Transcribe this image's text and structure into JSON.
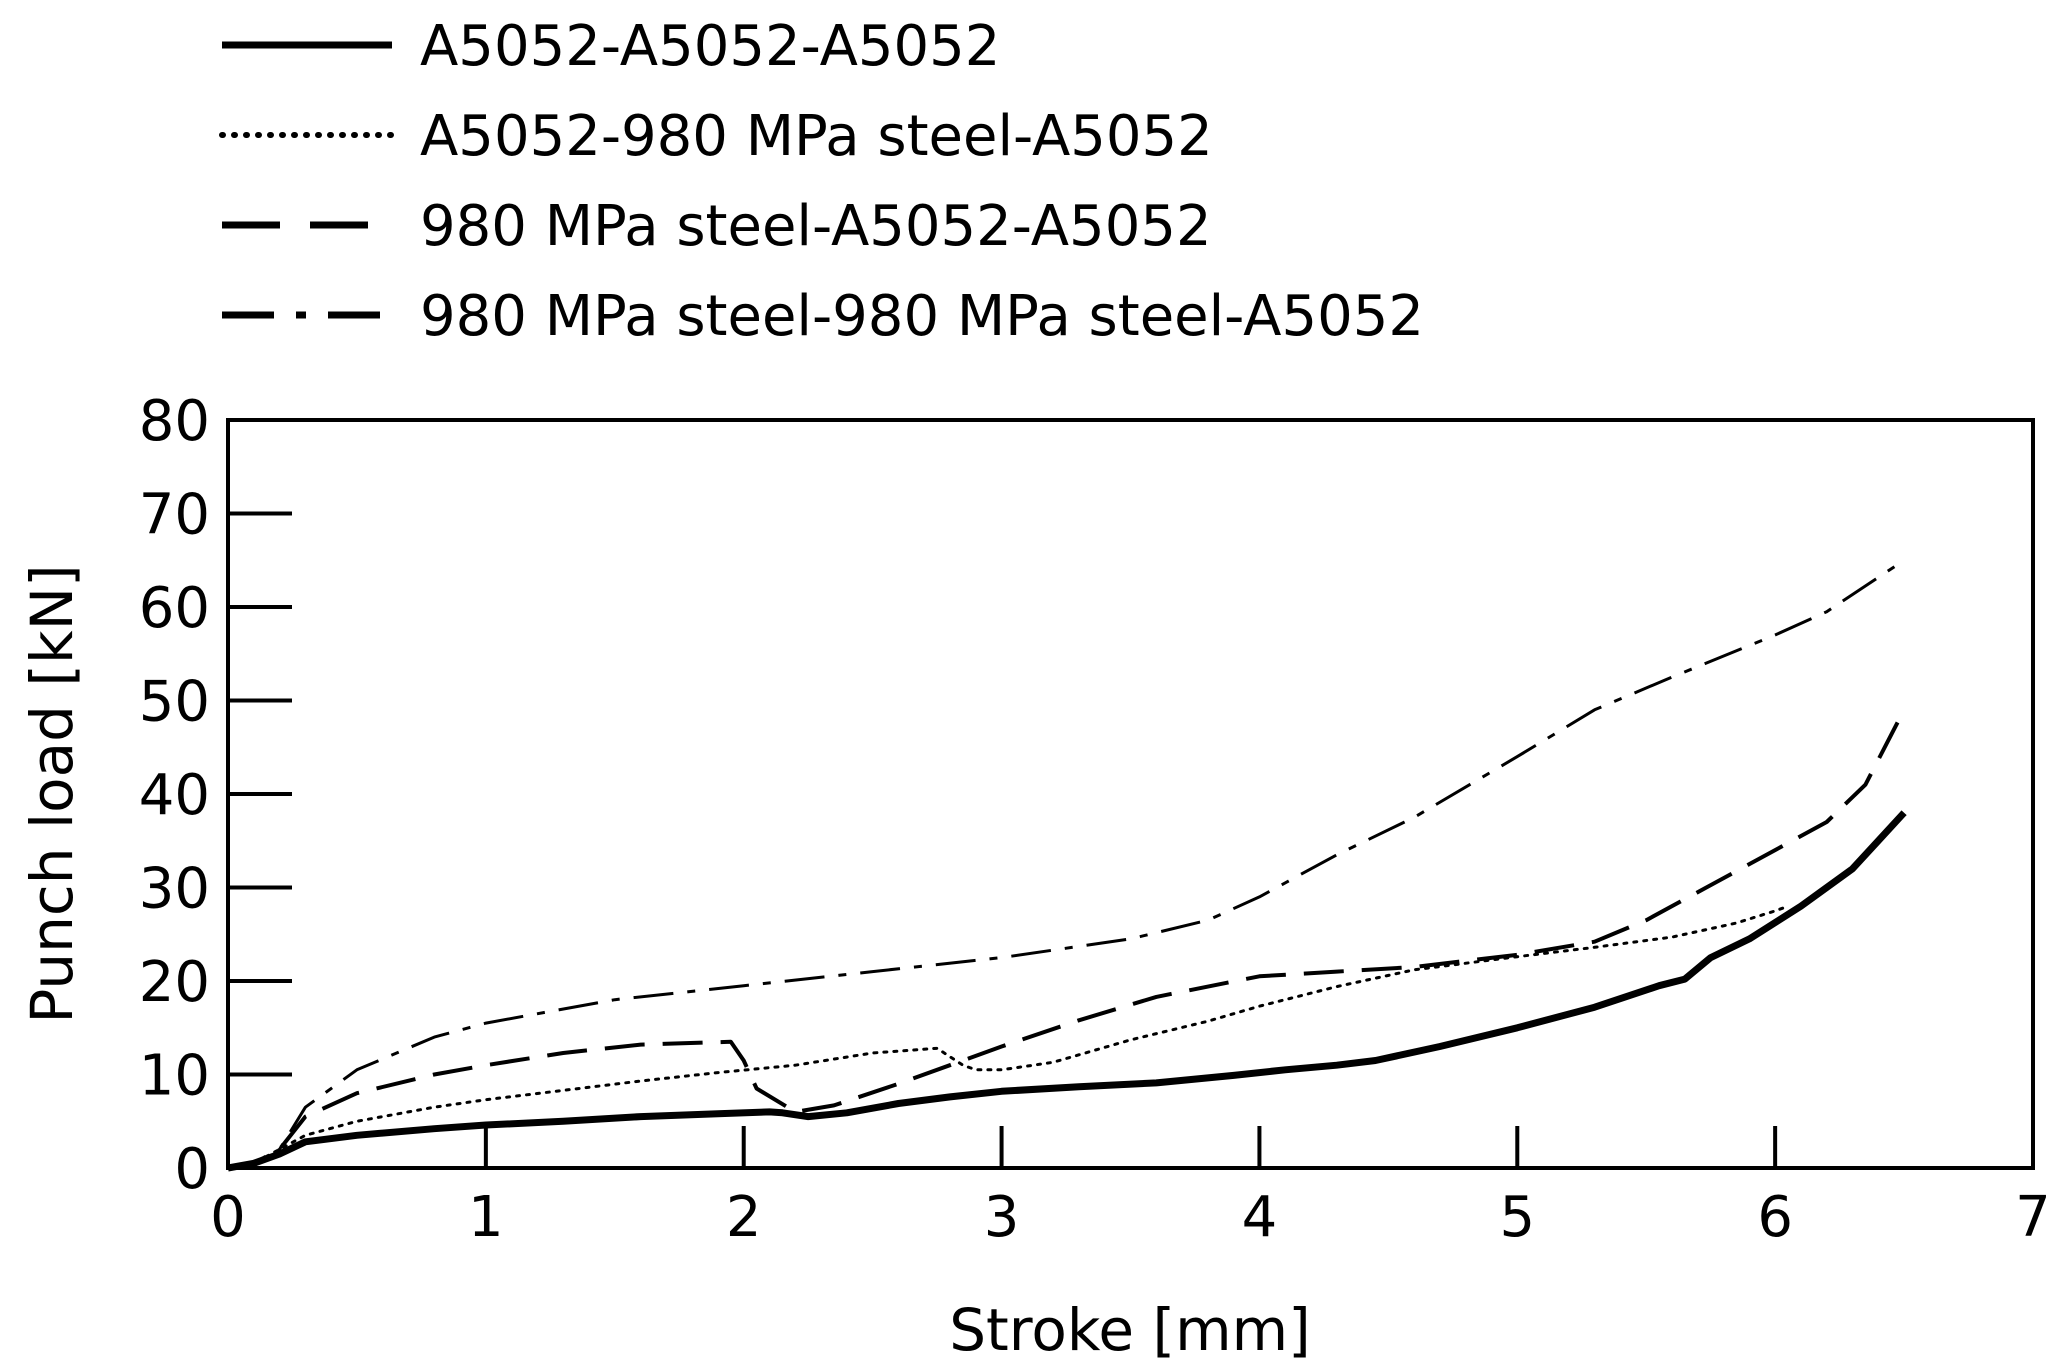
{
  "chart_data": {
    "type": "line",
    "xlabel": "Stroke [mm]",
    "ylabel": "Punch load [kN]",
    "xlim": [
      0,
      7
    ],
    "ylim": [
      0,
      80
    ],
    "xticks": [
      "0",
      "1",
      "2",
      "3",
      "4",
      "5",
      "6",
      "7"
    ],
    "yticks": [
      "0",
      "10",
      "20",
      "30",
      "40",
      "50",
      "60",
      "70",
      "80"
    ],
    "grid": false,
    "legend_position": "top-left",
    "series": [
      {
        "name": "A5052-A5052-A5052",
        "style": "solid",
        "x": [
          0,
          0.1,
          0.2,
          0.3,
          0.5,
          0.8,
          1.0,
          1.3,
          1.6,
          1.9,
          2.1,
          2.15,
          2.25,
          2.4,
          2.6,
          2.8,
          3.0,
          3.3,
          3.6,
          3.9,
          4.1,
          4.3,
          4.45,
          4.7,
          5.0,
          5.3,
          5.55,
          5.65,
          5.75,
          5.9,
          6.1,
          6.3,
          6.4,
          6.5
        ],
        "y": [
          0,
          0.5,
          1.5,
          2.8,
          3.5,
          4.2,
          4.6,
          5.0,
          5.5,
          5.8,
          6.0,
          5.9,
          5.5,
          5.9,
          6.9,
          7.6,
          8.2,
          8.7,
          9.1,
          9.9,
          10.5,
          11.0,
          11.5,
          13.0,
          15.0,
          17.2,
          19.5,
          20.2,
          22.5,
          24.5,
          28.0,
          32.0,
          35.0,
          38.0
        ]
      },
      {
        "name": "A5052-980 MPa steel-A5052",
        "style": "dotted",
        "x": [
          0,
          0.1,
          0.2,
          0.3,
          0.5,
          0.8,
          1.0,
          1.3,
          1.6,
          1.9,
          2.2,
          2.5,
          2.75,
          2.85,
          2.9,
          3.0,
          3.2,
          3.5,
          3.8,
          4.0,
          4.3,
          4.6,
          5.0,
          5.3,
          5.6,
          5.85,
          6.0,
          6.05
        ],
        "y": [
          0,
          0.5,
          2.0,
          3.5,
          5.0,
          6.5,
          7.3,
          8.3,
          9.3,
          10.2,
          11.0,
          12.3,
          12.8,
          11.0,
          10.5,
          10.5,
          11.3,
          13.7,
          15.7,
          17.3,
          19.4,
          21.2,
          22.6,
          23.6,
          24.7,
          26.2,
          27.5,
          28.0
        ]
      },
      {
        "name": "980 MPa steel-A5052-A5052",
        "style": "dashed",
        "x": [
          0,
          0.1,
          0.2,
          0.3,
          0.5,
          0.8,
          1.0,
          1.3,
          1.6,
          1.95,
          2.0,
          2.05,
          2.2,
          2.35,
          2.6,
          3.0,
          3.3,
          3.6,
          4.0,
          4.3,
          4.6,
          5.0,
          5.3,
          5.5,
          5.8,
          6.0,
          6.2,
          6.35,
          6.5
        ],
        "y": [
          0,
          0.5,
          2.0,
          5.5,
          8.0,
          10.0,
          11.0,
          12.3,
          13.2,
          13.5,
          11.5,
          8.5,
          6.0,
          6.7,
          9.0,
          13.0,
          15.8,
          18.3,
          20.5,
          21.0,
          21.5,
          22.8,
          24.2,
          26.5,
          31.0,
          34.0,
          37.0,
          41.0,
          49.0
        ]
      },
      {
        "name": "980 MPa steel-980 MPa steel-A5052",
        "style": "dashdot",
        "x": [
          0,
          0.1,
          0.2,
          0.3,
          0.5,
          0.8,
          1.0,
          1.5,
          2.0,
          2.5,
          3.0,
          3.5,
          3.8,
          4.0,
          4.3,
          4.6,
          5.0,
          5.3,
          5.6,
          6.0,
          6.2,
          6.5
        ],
        "y": [
          0,
          0.5,
          2.0,
          6.5,
          10.5,
          14.0,
          15.5,
          18.0,
          19.5,
          21.0,
          22.5,
          24.5,
          26.5,
          29.0,
          33.5,
          37.5,
          44.0,
          49.0,
          52.5,
          57.0,
          59.5,
          65.0
        ]
      }
    ]
  }
}
